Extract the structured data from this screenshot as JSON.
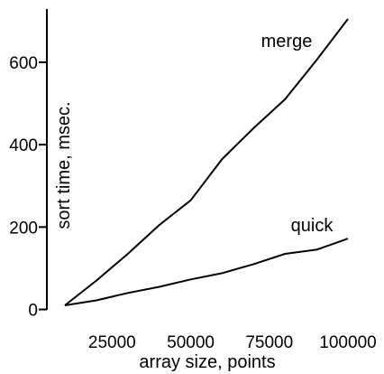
{
  "chart_data": {
    "type": "line",
    "title": "",
    "xlabel": "array size, points",
    "ylabel": "sort time, msec.",
    "xlim": [
      10000,
      100000
    ],
    "ylim": [
      0,
      700
    ],
    "grid": false,
    "legend": "none",
    "xticks": [
      25000,
      50000,
      75000,
      100000
    ],
    "xtick_labels": [
      "25000",
      "50000",
      "75000",
      "100000"
    ],
    "yticks": [
      0,
      200,
      400,
      600
    ],
    "ytick_labels": [
      "0",
      "200",
      "400",
      "600"
    ],
    "series": [
      {
        "name": "merge",
        "x": [
          10000,
          20000,
          30000,
          40000,
          50000,
          60000,
          70000,
          80000,
          90000,
          100000
        ],
        "y": [
          10,
          70,
          135,
          205,
          265,
          365,
          440,
          510,
          605,
          705
        ],
        "color": "#000000"
      },
      {
        "name": "quick",
        "x": [
          10000,
          20000,
          30000,
          40000,
          50000,
          60000,
          70000,
          80000,
          90000,
          100000
        ],
        "y": [
          10,
          22,
          40,
          55,
          73,
          88,
          110,
          135,
          145,
          172
        ],
        "color": "#000000"
      }
    ]
  }
}
